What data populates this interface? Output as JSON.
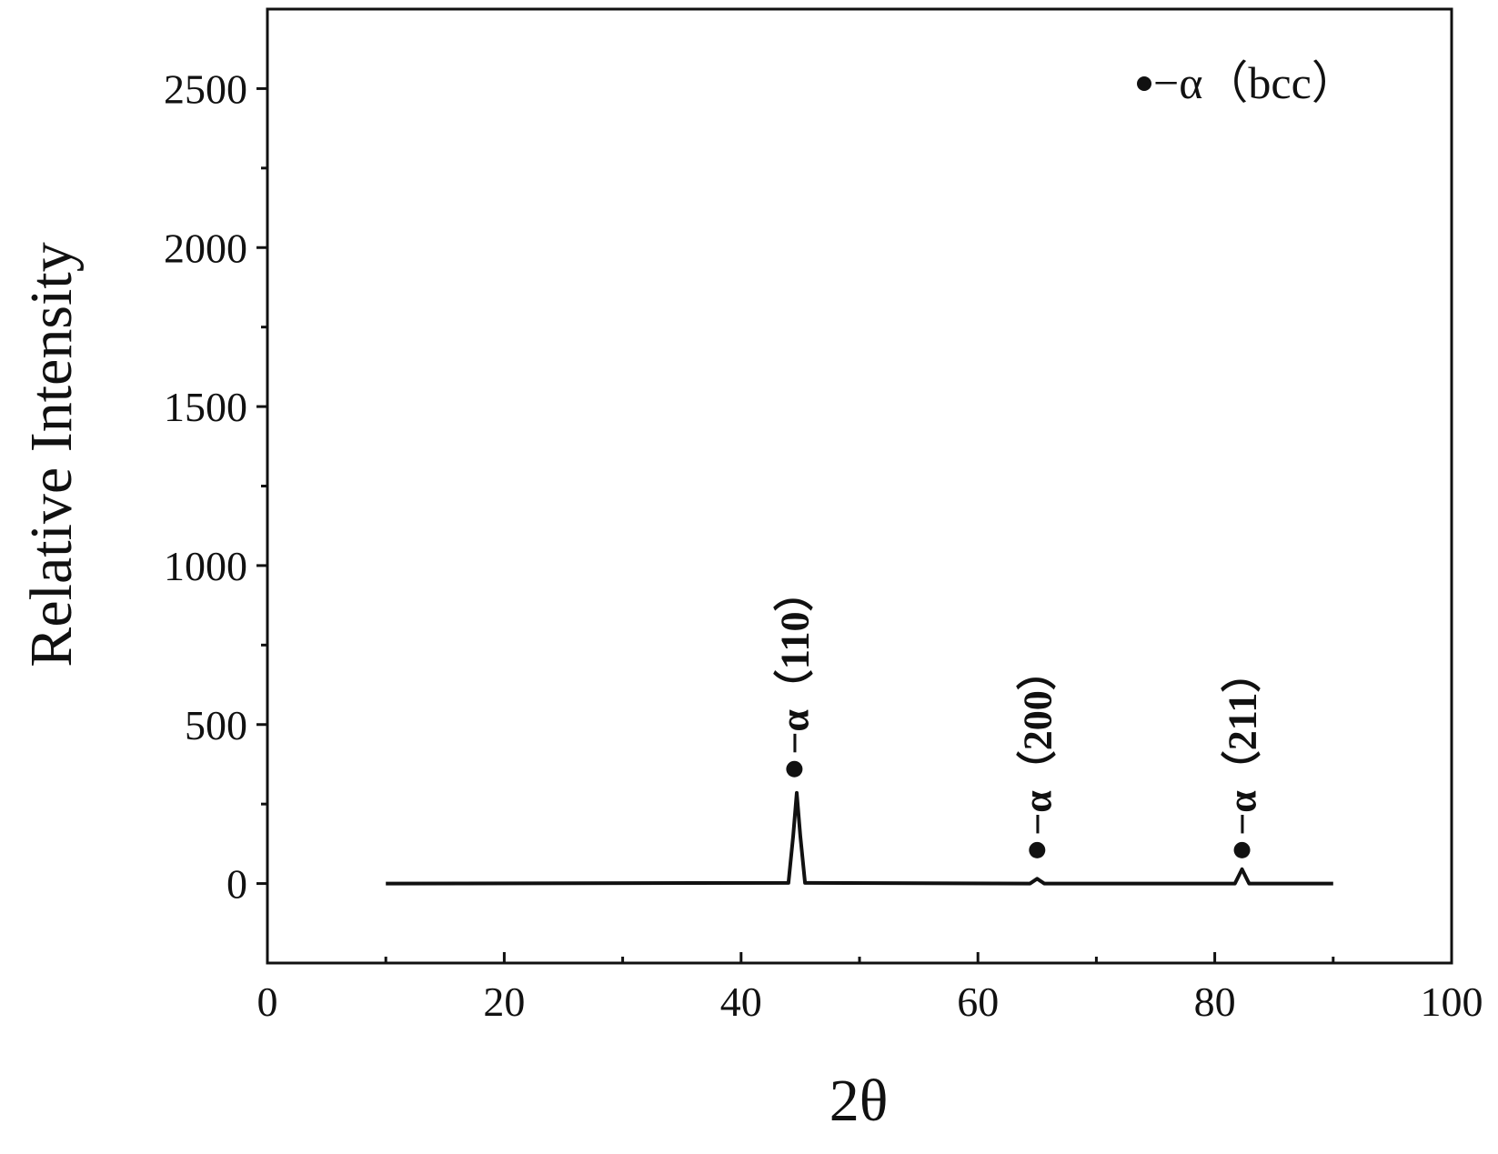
{
  "chart_data": {
    "type": "line",
    "x_label": "2θ",
    "y_label": "Relative Intensity",
    "x": [
      10,
      44.0,
      44.4,
      44.7,
      45.0,
      45.4,
      64.4,
      65.0,
      65.6,
      81.7,
      82.3,
      82.9,
      90
    ],
    "values": [
      0,
      2,
      150,
      285,
      150,
      2,
      0,
      15,
      0,
      0,
      45,
      0,
      0
    ],
    "color": "#111111",
    "xlim": [
      0,
      100
    ],
    "xticks": [
      0,
      20,
      40,
      60,
      80,
      100
    ],
    "xminorticks": [
      10,
      30,
      50,
      70,
      90
    ],
    "ylim": [
      -250,
      2750
    ],
    "yticks": [
      0,
      500,
      1000,
      1500,
      2000,
      2500
    ],
    "yminorticks": [
      250,
      750,
      1250,
      1750,
      2250
    ],
    "annotations": [
      {
        "text": "−α（110）",
        "x": 44.5,
        "y": 360
      },
      {
        "text": "−α（200）",
        "x": 65,
        "y": 105
      },
      {
        "text": "−α（211）",
        "x": 82.3,
        "y": 105
      }
    ],
    "legend": {
      "label": "−α（bcc）",
      "position": "upper-right"
    }
  }
}
